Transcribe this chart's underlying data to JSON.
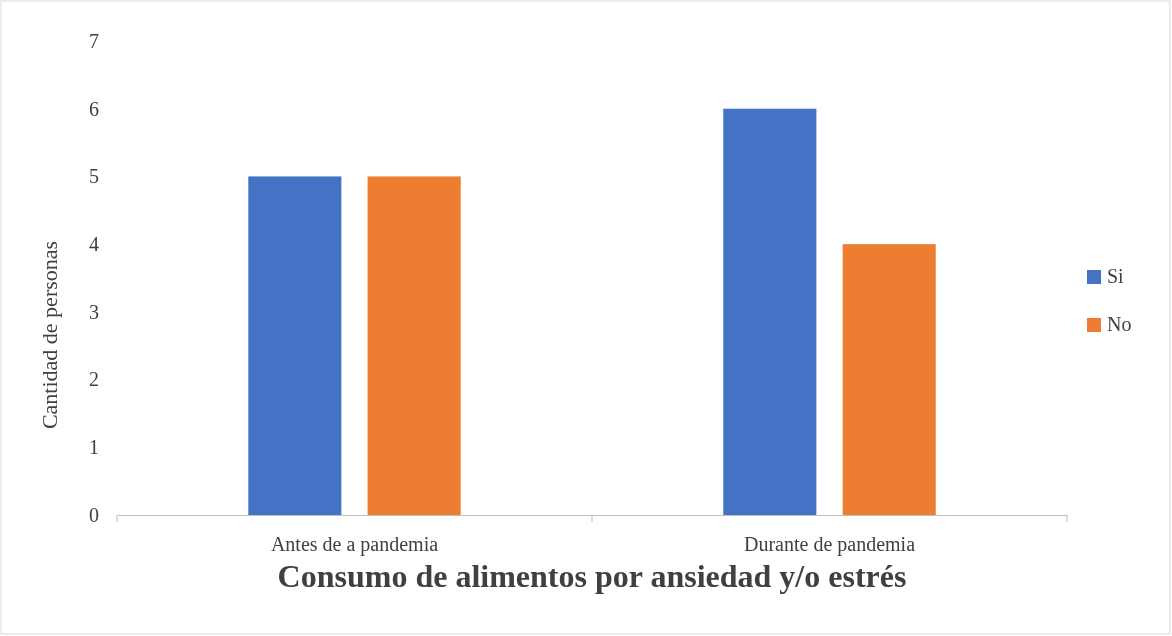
{
  "chart_data": {
    "type": "bar",
    "xlabel": "Consumo de alimentos por ansiedad y/o estrés",
    "ylabel": "Cantidad de personas",
    "categories": [
      "Antes de a pandemia",
      "Durante de pandemia"
    ],
    "series": [
      {
        "name": "Si",
        "color": "#4472c4",
        "values": [
          5,
          6
        ]
      },
      {
        "name": "No",
        "color": "#ed7d31",
        "values": [
          5,
          4
        ]
      }
    ],
    "ylim": [
      0,
      7
    ],
    "yticks": [
      0,
      1,
      2,
      3,
      4,
      5,
      6,
      7
    ],
    "grid": false,
    "legend": "right"
  }
}
